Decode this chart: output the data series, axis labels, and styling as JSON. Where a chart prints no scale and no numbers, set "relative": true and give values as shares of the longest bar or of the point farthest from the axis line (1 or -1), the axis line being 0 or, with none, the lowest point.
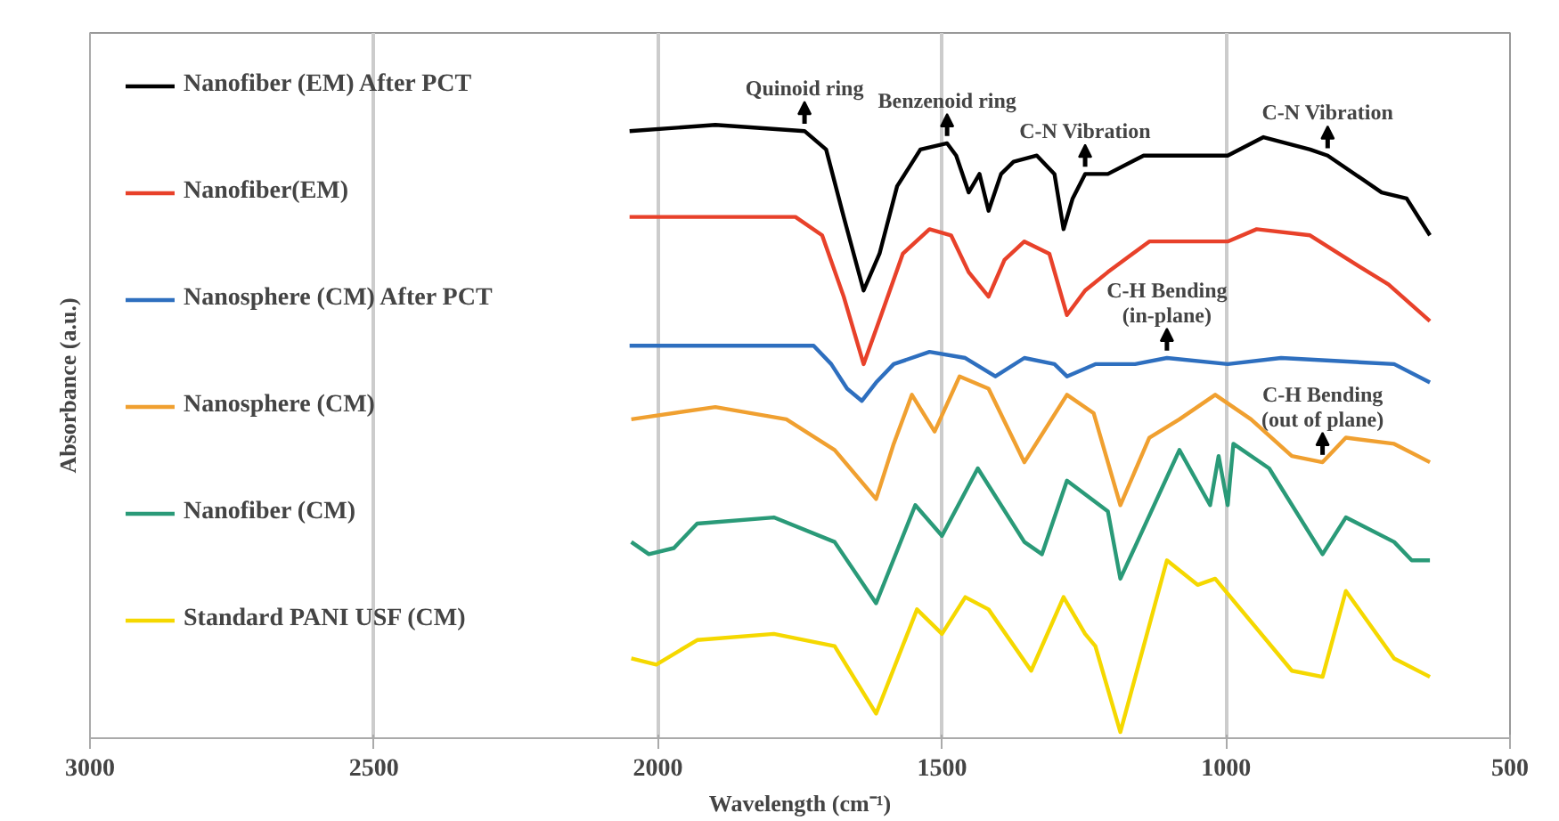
{
  "chart_data": {
    "type": "line",
    "relative": true,
    "xlabel": "Wavelength (cm⁻¹)",
    "ylabel": "Absorbance (a.u.)",
    "xlim": [
      3000,
      500
    ],
    "xticks": [
      3000,
      2500,
      2000,
      1500,
      1000,
      500
    ],
    "grid": "x",
    "legend": "left",
    "marker": "none",
    "line_style": "solid",
    "series": [
      {
        "name": "Nanofiber (EM) After PCT",
        "color": "#000000",
        "x": [
          2050,
          1899,
          1742,
          1704,
          1673,
          1638,
          1610,
          1579,
          1538,
          1491,
          1475,
          1453,
          1434,
          1418,
          1396,
          1374,
          1333,
          1302,
          1286,
          1270,
          1248,
          1208,
          1145,
          997,
          934,
          852,
          821,
          726,
          682,
          641
        ],
        "values": [
          0.99,
          1.0,
          0.99,
          0.96,
          0.85,
          0.73,
          0.79,
          0.9,
          0.96,
          0.97,
          0.95,
          0.89,
          0.92,
          0.86,
          0.92,
          0.94,
          0.95,
          0.92,
          0.83,
          0.88,
          0.92,
          0.92,
          0.95,
          0.95,
          0.98,
          0.96,
          0.95,
          0.89,
          0.88,
          0.82
        ]
      },
      {
        "name": "Nanofiber(EM)",
        "color": "#e8412a",
        "x": [
          2050,
          1899,
          1758,
          1711,
          1673,
          1638,
          1607,
          1569,
          1522,
          1484,
          1453,
          1418,
          1390,
          1355,
          1311,
          1280,
          1248,
          1208,
          1135,
          997,
          946,
          852,
          767,
          714,
          641
        ],
        "values": [
          0.85,
          0.85,
          0.85,
          0.82,
          0.72,
          0.61,
          0.69,
          0.79,
          0.83,
          0.82,
          0.76,
          0.72,
          0.78,
          0.81,
          0.79,
          0.69,
          0.73,
          0.76,
          0.81,
          0.81,
          0.83,
          0.82,
          0.77,
          0.74,
          0.68
        ]
      },
      {
        "name": "Nanosphere (CM) After PCT",
        "color": "#2e6fbf",
        "x": [
          2050,
          1899,
          1726,
          1695,
          1667,
          1641,
          1616,
          1585,
          1522,
          1459,
          1406,
          1355,
          1302,
          1280,
          1230,
          1160,
          1104,
          997,
          903,
          704,
          641
        ],
        "values": [
          0.64,
          0.64,
          0.64,
          0.61,
          0.57,
          0.55,
          0.58,
          0.61,
          0.63,
          0.62,
          0.59,
          0.62,
          0.61,
          0.59,
          0.61,
          0.61,
          0.62,
          0.61,
          0.62,
          0.61,
          0.58
        ]
      },
      {
        "name": "Nanosphere (CM)",
        "color": "#f0a030",
        "x": [
          2047,
          1899,
          1774,
          1689,
          1616,
          1585,
          1553,
          1513,
          1469,
          1418,
          1355,
          1280,
          1233,
          1186,
          1135,
          1082,
          1019,
          956,
          884,
          830,
          789,
          704,
          641
        ],
        "values": [
          0.52,
          0.54,
          0.52,
          0.47,
          0.39,
          0.48,
          0.56,
          0.5,
          0.59,
          0.57,
          0.45,
          0.56,
          0.53,
          0.38,
          0.49,
          0.52,
          0.56,
          0.52,
          0.46,
          0.45,
          0.49,
          0.48,
          0.45
        ]
      },
      {
        "name": "Nanofiber (CM)",
        "color": "#2a9a78",
        "x": [
          2047,
          2016,
          1972,
          1931,
          1796,
          1689,
          1616,
          1547,
          1500,
          1437,
          1355,
          1324,
          1280,
          1208,
          1186,
          1082,
          1028,
          1013,
          997,
          987,
          924,
          830,
          789,
          704,
          673,
          641
        ],
        "values": [
          0.32,
          0.3,
          0.31,
          0.35,
          0.36,
          0.32,
          0.22,
          0.38,
          0.33,
          0.44,
          0.32,
          0.3,
          0.42,
          0.37,
          0.26,
          0.47,
          0.38,
          0.46,
          0.38,
          0.48,
          0.44,
          0.3,
          0.36,
          0.32,
          0.29,
          0.29
        ]
      },
      {
        "name": "Standard PANI USF (CM)",
        "color": "#f5d800",
        "x": [
          2047,
          2003,
          1931,
          1796,
          1689,
          1616,
          1544,
          1500,
          1459,
          1418,
          1343,
          1286,
          1248,
          1230,
          1186,
          1104,
          1050,
          1019,
          884,
          830,
          789,
          704,
          641
        ],
        "values": [
          0.13,
          0.12,
          0.16,
          0.17,
          0.15,
          0.04,
          0.21,
          0.17,
          0.23,
          0.21,
          0.11,
          0.23,
          0.17,
          0.15,
          0.01,
          0.29,
          0.25,
          0.26,
          0.11,
          0.1,
          0.24,
          0.13,
          0.1
        ]
      }
    ],
    "annotations": [
      {
        "text": "Quinoid ring",
        "x": 1742,
        "y": 0.99
      },
      {
        "text": "Benzenoid ring",
        "x": 1491,
        "y": 0.97
      },
      {
        "text": "C-N Vibration",
        "x": 1248,
        "y": 0.92
      },
      {
        "text": "C-N Vibration",
        "x": 821,
        "y": 0.95
      },
      {
        "text": "C-H Bending\n(in-plane)",
        "x": 1104,
        "y": 0.62
      },
      {
        "text": "C-H Bending\n(out of plane)",
        "x": 830,
        "y": 0.45
      }
    ]
  }
}
